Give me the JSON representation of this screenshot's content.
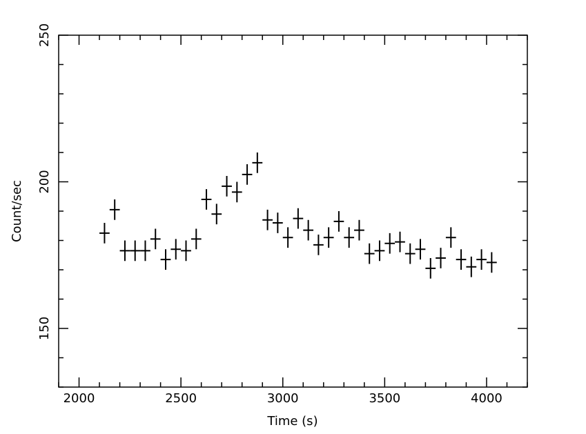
{
  "chart_data": {
    "type": "scatter",
    "xlabel": "Time (s)",
    "ylabel": "Count/sec",
    "xlim": [
      1900,
      4200
    ],
    "ylim": [
      130,
      250
    ],
    "x_ticks": [
      {
        "value": 2000,
        "label": "2000"
      },
      {
        "value": 2500,
        "label": "2500"
      },
      {
        "value": 3000,
        "label": "3000"
      },
      {
        "value": 3500,
        "label": "3500"
      },
      {
        "value": 4000,
        "label": "4000"
      }
    ],
    "y_ticks": [
      {
        "value": 150,
        "label": "150"
      },
      {
        "value": 200,
        "label": "200"
      },
      {
        "value": 250,
        "label": "250"
      }
    ],
    "x_minor_step": 100,
    "y_minor_step": 10,
    "x_err": 25,
    "points": [
      {
        "x": 2125,
        "y": 182.5,
        "yerr": 3.5
      },
      {
        "x": 2175,
        "y": 190.5,
        "yerr": 3.5
      },
      {
        "x": 2225,
        "y": 176.5,
        "yerr": 3.5
      },
      {
        "x": 2275,
        "y": 176.5,
        "yerr": 3.5
      },
      {
        "x": 2325,
        "y": 176.5,
        "yerr": 3.5
      },
      {
        "x": 2375,
        "y": 180.5,
        "yerr": 3.5
      },
      {
        "x": 2425,
        "y": 173.5,
        "yerr": 3.5
      },
      {
        "x": 2475,
        "y": 177.0,
        "yerr": 3.5
      },
      {
        "x": 2525,
        "y": 176.5,
        "yerr": 3.5
      },
      {
        "x": 2575,
        "y": 180.5,
        "yerr": 3.5
      },
      {
        "x": 2625,
        "y": 194.0,
        "yerr": 3.5
      },
      {
        "x": 2675,
        "y": 189.0,
        "yerr": 3.5
      },
      {
        "x": 2725,
        "y": 198.5,
        "yerr": 3.5
      },
      {
        "x": 2775,
        "y": 196.5,
        "yerr": 3.5
      },
      {
        "x": 2825,
        "y": 202.5,
        "yerr": 3.5
      },
      {
        "x": 2875,
        "y": 206.5,
        "yerr": 3.5
      },
      {
        "x": 2925,
        "y": 187.0,
        "yerr": 3.5
      },
      {
        "x": 2975,
        "y": 186.0,
        "yerr": 3.5
      },
      {
        "x": 3025,
        "y": 181.0,
        "yerr": 3.5
      },
      {
        "x": 3075,
        "y": 187.5,
        "yerr": 3.5
      },
      {
        "x": 3125,
        "y": 183.5,
        "yerr": 3.5
      },
      {
        "x": 3175,
        "y": 178.5,
        "yerr": 3.5
      },
      {
        "x": 3225,
        "y": 181.0,
        "yerr": 3.5
      },
      {
        "x": 3275,
        "y": 186.5,
        "yerr": 3.5
      },
      {
        "x": 3325,
        "y": 181.0,
        "yerr": 3.5
      },
      {
        "x": 3375,
        "y": 183.5,
        "yerr": 3.5
      },
      {
        "x": 3425,
        "y": 175.5,
        "yerr": 3.5
      },
      {
        "x": 3475,
        "y": 176.5,
        "yerr": 3.5
      },
      {
        "x": 3525,
        "y": 179.0,
        "yerr": 3.5
      },
      {
        "x": 3575,
        "y": 179.5,
        "yerr": 3.5
      },
      {
        "x": 3625,
        "y": 175.5,
        "yerr": 3.5
      },
      {
        "x": 3675,
        "y": 177.0,
        "yerr": 3.5
      },
      {
        "x": 3725,
        "y": 170.5,
        "yerr": 3.5
      },
      {
        "x": 3775,
        "y": 174.0,
        "yerr": 3.5
      },
      {
        "x": 3825,
        "y": 181.0,
        "yerr": 3.5
      },
      {
        "x": 3875,
        "y": 173.5,
        "yerr": 3.5
      },
      {
        "x": 3925,
        "y": 171.0,
        "yerr": 3.5
      },
      {
        "x": 3975,
        "y": 173.5,
        "yerr": 3.5
      },
      {
        "x": 4025,
        "y": 172.5,
        "yerr": 3.5
      }
    ],
    "grid": false,
    "legend": "none",
    "colors": {
      "marks": "#000000",
      "frame": "#000000",
      "background": "#ffffff"
    }
  }
}
